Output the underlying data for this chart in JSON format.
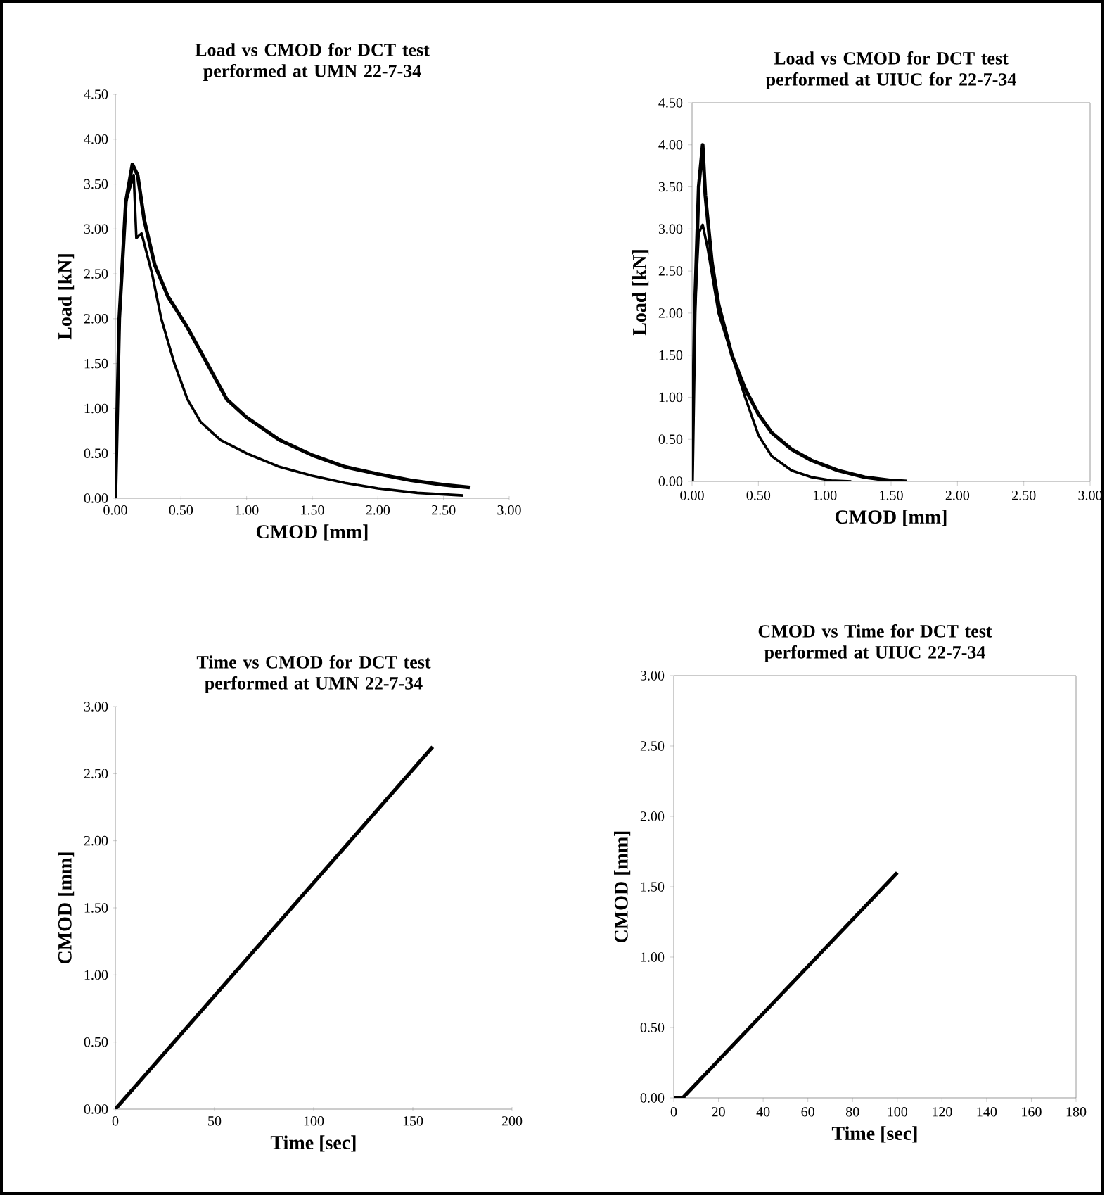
{
  "chart_data": [
    {
      "type": "line",
      "title": "Load vs CMOD for  DCT test performed at UMN 22-7-34",
      "xlabel": "CMOD [mm]",
      "ylabel": "Load [kN]",
      "xlim": [
        0,
        3
      ],
      "ylim": [
        0,
        4.5
      ],
      "xticks": [
        {
          "value": 0,
          "label": "0.00"
        },
        {
          "value": 0.5,
          "label": "0.50"
        },
        {
          "value": 1,
          "label": "1.00"
        },
        {
          "value": 1.5,
          "label": "1.50"
        },
        {
          "value": 2,
          "label": "2.00"
        },
        {
          "value": 2.5,
          "label": "2.50"
        },
        {
          "value": 3,
          "label": "3.00"
        }
      ],
      "yticks": [
        {
          "value": 0,
          "label": "0.00"
        },
        {
          "value": 0.5,
          "label": "0.50"
        },
        {
          "value": 1,
          "label": "1.00"
        },
        {
          "value": 1.5,
          "label": "1.50"
        },
        {
          "value": 2,
          "label": "2.00"
        },
        {
          "value": 2.5,
          "label": "2.50"
        },
        {
          "value": 3,
          "label": "3.00"
        },
        {
          "value": 3.5,
          "label": "3.50"
        },
        {
          "value": 4,
          "label": "4.00"
        },
        {
          "value": 4.5,
          "label": "4.50"
        }
      ],
      "series": [
        {
          "color": "#000000",
          "x": [
            0,
            0.03,
            0.08,
            0.13,
            0.17,
            0.22,
            0.3,
            0.4,
            0.55,
            0.7,
            0.85,
            1.0,
            1.25,
            1.5,
            1.75,
            2.0,
            2.25,
            2.5,
            2.7
          ],
          "values": [
            0,
            2.0,
            3.3,
            3.72,
            3.6,
            3.1,
            2.6,
            2.25,
            1.9,
            1.5,
            1.1,
            0.9,
            0.65,
            0.48,
            0.35,
            0.27,
            0.2,
            0.15,
            0.12
          ]
        },
        {
          "color": "#000000",
          "x": [
            0,
            0.03,
            0.08,
            0.14,
            0.16,
            0.2,
            0.28,
            0.35,
            0.45,
            0.55,
            0.65,
            0.8,
            1.0,
            1.25,
            1.5,
            1.75,
            2.0,
            2.3,
            2.65
          ],
          "values": [
            0,
            2.0,
            3.3,
            3.6,
            2.9,
            2.95,
            2.5,
            2.0,
            1.5,
            1.1,
            0.85,
            0.65,
            0.5,
            0.35,
            0.25,
            0.17,
            0.11,
            0.06,
            0.03
          ]
        }
      ]
    },
    {
      "type": "line",
      "title": "Load vs CMOD for DCT test performed at UIUC for 22-7-34",
      "xlabel": "CMOD [mm]",
      "ylabel": "Load [kN]",
      "xlim": [
        0,
        3
      ],
      "ylim": [
        0,
        4.5
      ],
      "xticks": [
        {
          "value": 0,
          "label": "0.00"
        },
        {
          "value": 0.5,
          "label": "0.50"
        },
        {
          "value": 1,
          "label": "1.00"
        },
        {
          "value": 1.5,
          "label": "1.50"
        },
        {
          "value": 2,
          "label": "2.00"
        },
        {
          "value": 2.5,
          "label": "2.50"
        },
        {
          "value": 3,
          "label": "3.00"
        }
      ],
      "yticks": [
        {
          "value": 0,
          "label": "0.00"
        },
        {
          "value": 0.5,
          "label": "0.50"
        },
        {
          "value": 1,
          "label": "1.00"
        },
        {
          "value": 1.5,
          "label": "1.50"
        },
        {
          "value": 2,
          "label": "2.00"
        },
        {
          "value": 2.5,
          "label": "2.50"
        },
        {
          "value": 3,
          "label": "3.00"
        },
        {
          "value": 3.5,
          "label": "3.50"
        },
        {
          "value": 4,
          "label": "4.00"
        },
        {
          "value": 4.5,
          "label": "4.50"
        }
      ],
      "series": [
        {
          "color": "#000000",
          "x": [
            0,
            0.02,
            0.05,
            0.08,
            0.1,
            0.15,
            0.2,
            0.3,
            0.4,
            0.5,
            0.6,
            0.75,
            0.9,
            1.1,
            1.3,
            1.5,
            1.62
          ],
          "values": [
            0,
            2.0,
            3.5,
            4.0,
            3.4,
            2.6,
            2.1,
            1.5,
            1.1,
            0.8,
            0.58,
            0.38,
            0.25,
            0.13,
            0.05,
            0.01,
            0
          ]
        },
        {
          "color": "#000000",
          "x": [
            0,
            0.02,
            0.05,
            0.08,
            0.12,
            0.2,
            0.3,
            0.4,
            0.5,
            0.6,
            0.75,
            0.9,
            1.05,
            1.2
          ],
          "values": [
            0,
            2.0,
            2.95,
            3.05,
            2.75,
            2.0,
            1.5,
            1.0,
            0.55,
            0.3,
            0.13,
            0.05,
            0.01,
            0
          ]
        }
      ]
    },
    {
      "type": "line",
      "title": "Time vs CMOD for  DCT test performed at UMN 22-7-34",
      "xlabel": "Time [sec]",
      "ylabel": "CMOD [mm]",
      "xlim": [
        0,
        200
      ],
      "ylim": [
        0,
        3
      ],
      "xticks": [
        0,
        50,
        100,
        150,
        200
      ],
      "yticks": [
        {
          "value": 0,
          "label": "0.00"
        },
        {
          "value": 0.5,
          "label": "0.50"
        },
        {
          "value": 1,
          "label": "1.00"
        },
        {
          "value": 1.5,
          "label": "1.50"
        },
        {
          "value": 2,
          "label": "2.00"
        },
        {
          "value": 2.5,
          "label": "2.50"
        },
        {
          "value": 3,
          "label": "3.00"
        }
      ],
      "series": [
        {
          "color": "#000000",
          "x": [
            0,
            160
          ],
          "values": [
            0,
            2.7
          ]
        }
      ]
    },
    {
      "type": "line",
      "title": "CMOD vs Time for DCT test performed at UIUC 22-7-34",
      "xlabel": "Time [sec]",
      "ylabel": "CMOD [mm]",
      "xlim": [
        0,
        180
      ],
      "ylim": [
        0,
        3
      ],
      "xticks": [
        0,
        20,
        40,
        60,
        80,
        100,
        120,
        140,
        160,
        180
      ],
      "yticks": [
        {
          "value": 0,
          "label": "0.00"
        },
        {
          "value": 0.5,
          "label": "0.50"
        },
        {
          "value": 1,
          "label": "1.00"
        },
        {
          "value": 1.5,
          "label": "1.50"
        },
        {
          "value": 2,
          "label": "2.00"
        },
        {
          "value": 2.5,
          "label": "2.50"
        },
        {
          "value": 3,
          "label": "3.00"
        }
      ],
      "series": [
        {
          "color": "#000000",
          "x": [
            0,
            4,
            100
          ],
          "values": [
            0,
            0,
            1.6
          ]
        }
      ]
    }
  ]
}
